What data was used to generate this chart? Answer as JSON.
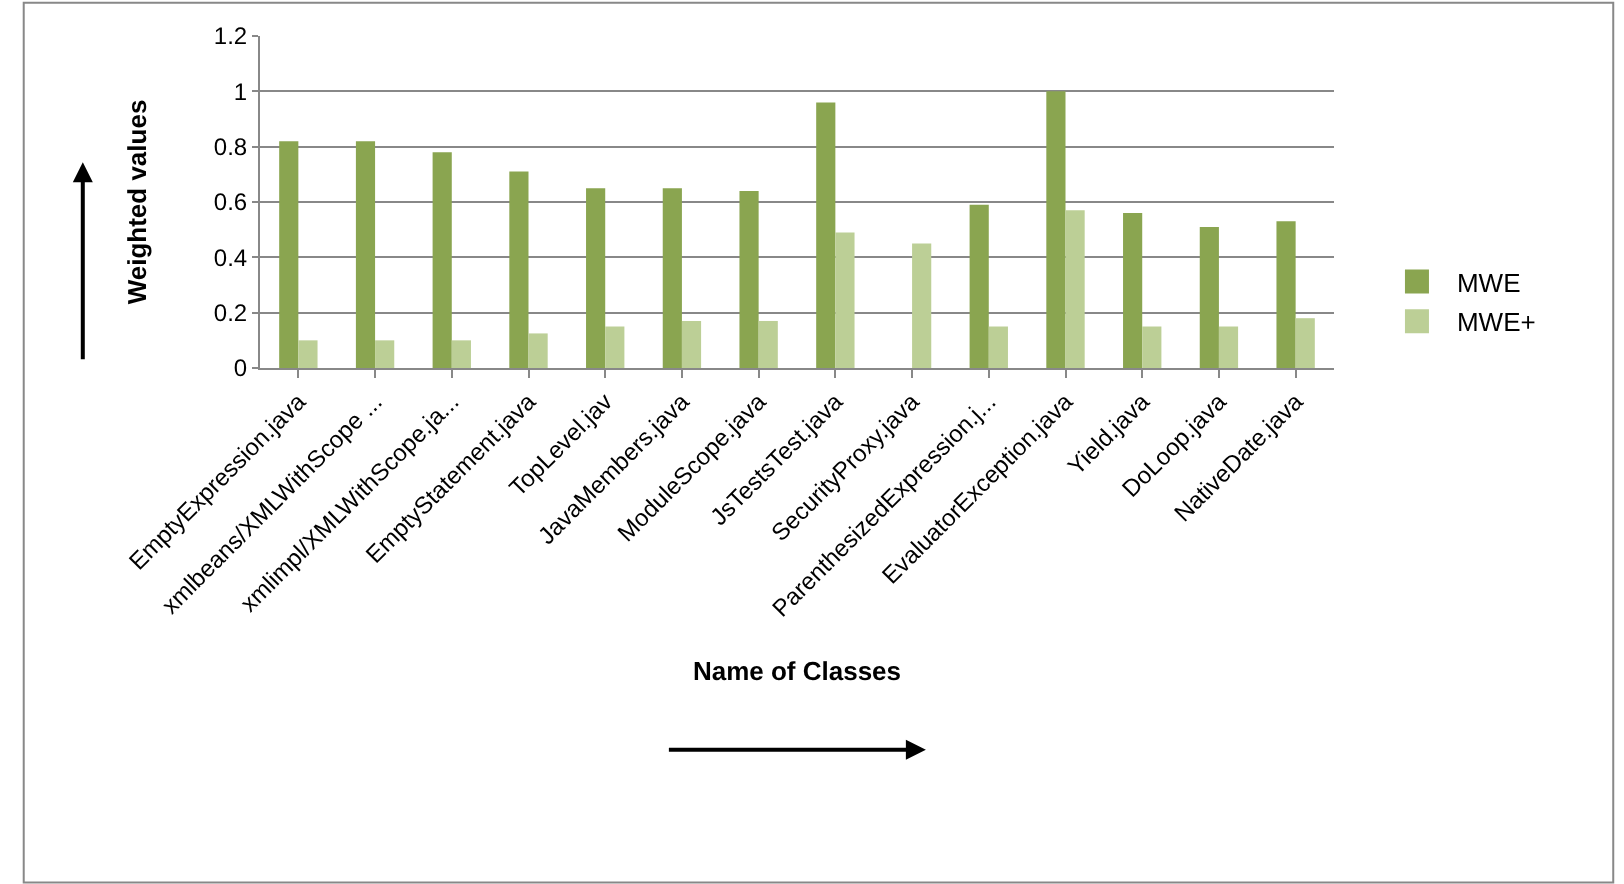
{
  "chart_data": {
    "type": "bar",
    "xlabel": "Name of Classes",
    "ylabel": "Weighted values",
    "categories": [
      "EmptyExpression.java",
      "xmlbeans/XMLWithScope ...",
      "xmlimpl/XMLWithScope.ja...",
      "EmptyStatement.java",
      "TopLevel.jav",
      "JavaMembers.java",
      "ModuleScope.java",
      "JsTestsTest.java",
      "SecurityProxy.java",
      "ParenthesizedExpression.j...",
      "EvaluatorException.java",
      "Yield.java",
      "DoLoop.java",
      "NativeDate.java"
    ],
    "series": [
      {
        "name": "MWE",
        "color": "#8aa550",
        "values": [
          0.82,
          0.82,
          0.78,
          0.71,
          0.65,
          0.65,
          0.64,
          0.96,
          null,
          0.59,
          1.0,
          0.56,
          0.51,
          0.53
        ]
      },
      {
        "name": "MWE+",
        "color": "#bccf96",
        "values": [
          0.1,
          0.1,
          0.1,
          0.125,
          0.15,
          0.17,
          0.17,
          0.49,
          0.45,
          0.15,
          0.57,
          0.15,
          0.15,
          0.18
        ]
      }
    ],
    "ylim": [
      0,
      1.2
    ],
    "yticks": [
      0,
      0.2,
      0.4,
      0.6,
      0.8,
      1,
      1.2
    ],
    "grid": "y",
    "legend": "right"
  }
}
